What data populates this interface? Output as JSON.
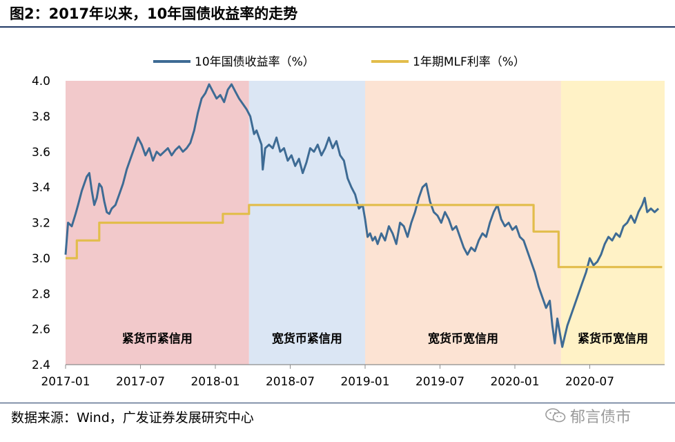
{
  "figure": {
    "title": "图2：2017年以来，10年国债收益率的走势",
    "source": "数据来源：Wind，广发证券发展研究中心",
    "watermark": "郁言债市"
  },
  "colors": {
    "yield_line": "#3e6b94",
    "mlf_line": "#e2bd4b",
    "region_tight_tight": "#f2c9cb",
    "region_loose_tight": "#dbe6f4",
    "region_loose_loose": "#fce3d3",
    "region_tight_loose": "#fff2c6"
  },
  "chart_data": {
    "type": "line",
    "title": "",
    "xlabel": "",
    "ylabel": "",
    "ylim": [
      2.4,
      4.0
    ],
    "yticks": [
      "4.0",
      "3.8",
      "3.6",
      "3.4",
      "3.2",
      "3.0",
      "2.8",
      "2.6",
      "2.4"
    ],
    "x_range_months": [
      0,
      48
    ],
    "xticks": [
      {
        "month": 0,
        "label": "2017-01"
      },
      {
        "month": 6,
        "label": "2017-07"
      },
      {
        "month": 12,
        "label": "2018-01"
      },
      {
        "month": 18,
        "label": "2018-07"
      },
      {
        "month": 24,
        "label": "2019-01"
      },
      {
        "month": 30,
        "label": "2019-07"
      },
      {
        "month": 36,
        "label": "2020-01"
      },
      {
        "month": 42,
        "label": "2020-07"
      }
    ],
    "legend": {
      "position": "top-center",
      "entries": [
        "10年国债收益率（%）",
        "1年期MLF利率（%）"
      ]
    },
    "regions": [
      {
        "label": "紧货币紧信用",
        "start": 0,
        "end": 14.7
      },
      {
        "label": "宽货币紧信用",
        "start": 14.7,
        "end": 24.0
      },
      {
        "label": "宽货币宽信用",
        "start": 24.0,
        "end": 39.7
      },
      {
        "label": "紧货币宽信用",
        "start": 39.7,
        "end": 48
      }
    ],
    "series": [
      {
        "name": "10年国债收益率（%）",
        "style": "line",
        "points": [
          [
            0.0,
            3.02
          ],
          [
            0.2,
            3.2
          ],
          [
            0.5,
            3.18
          ],
          [
            0.8,
            3.25
          ],
          [
            1.0,
            3.3
          ],
          [
            1.3,
            3.38
          ],
          [
            1.5,
            3.42
          ],
          [
            1.7,
            3.46
          ],
          [
            1.9,
            3.48
          ],
          [
            2.1,
            3.38
          ],
          [
            2.3,
            3.3
          ],
          [
            2.5,
            3.34
          ],
          [
            2.7,
            3.42
          ],
          [
            2.9,
            3.4
          ],
          [
            3.1,
            3.32
          ],
          [
            3.3,
            3.26
          ],
          [
            3.5,
            3.25
          ],
          [
            3.7,
            3.28
          ],
          [
            4.0,
            3.3
          ],
          [
            4.3,
            3.36
          ],
          [
            4.6,
            3.42
          ],
          [
            4.9,
            3.5
          ],
          [
            5.2,
            3.56
          ],
          [
            5.5,
            3.62
          ],
          [
            5.8,
            3.68
          ],
          [
            6.1,
            3.64
          ],
          [
            6.4,
            3.58
          ],
          [
            6.7,
            3.62
          ],
          [
            7.0,
            3.55
          ],
          [
            7.3,
            3.6
          ],
          [
            7.6,
            3.58
          ],
          [
            7.9,
            3.6
          ],
          [
            8.2,
            3.62
          ],
          [
            8.5,
            3.58
          ],
          [
            8.8,
            3.61
          ],
          [
            9.1,
            3.63
          ],
          [
            9.4,
            3.6
          ],
          [
            9.7,
            3.62
          ],
          [
            10.0,
            3.65
          ],
          [
            10.3,
            3.72
          ],
          [
            10.6,
            3.82
          ],
          [
            10.9,
            3.9
          ],
          [
            11.2,
            3.93
          ],
          [
            11.5,
            3.98
          ],
          [
            11.8,
            3.94
          ],
          [
            12.1,
            3.9
          ],
          [
            12.4,
            3.92
          ],
          [
            12.7,
            3.88
          ],
          [
            13.0,
            3.95
          ],
          [
            13.3,
            3.98
          ],
          [
            13.6,
            3.94
          ],
          [
            13.9,
            3.9
          ],
          [
            14.2,
            3.87
          ],
          [
            14.5,
            3.84
          ],
          [
            14.8,
            3.8
          ],
          [
            15.1,
            3.7
          ],
          [
            15.3,
            3.72
          ],
          [
            15.5,
            3.68
          ],
          [
            15.7,
            3.64
          ],
          [
            15.8,
            3.5
          ],
          [
            16.0,
            3.62
          ],
          [
            16.3,
            3.64
          ],
          [
            16.6,
            3.62
          ],
          [
            16.9,
            3.68
          ],
          [
            17.2,
            3.6
          ],
          [
            17.5,
            3.62
          ],
          [
            17.8,
            3.55
          ],
          [
            18.1,
            3.58
          ],
          [
            18.4,
            3.52
          ],
          [
            18.7,
            3.56
          ],
          [
            19.0,
            3.48
          ],
          [
            19.3,
            3.54
          ],
          [
            19.6,
            3.62
          ],
          [
            19.9,
            3.6
          ],
          [
            20.2,
            3.64
          ],
          [
            20.5,
            3.58
          ],
          [
            20.8,
            3.62
          ],
          [
            21.1,
            3.68
          ],
          [
            21.4,
            3.62
          ],
          [
            21.7,
            3.66
          ],
          [
            22.0,
            3.58
          ],
          [
            22.3,
            3.55
          ],
          [
            22.6,
            3.45
          ],
          [
            22.9,
            3.4
          ],
          [
            23.2,
            3.36
          ],
          [
            23.5,
            3.28
          ],
          [
            23.8,
            3.3
          ],
          [
            24.0,
            3.22
          ],
          [
            24.2,
            3.12
          ],
          [
            24.4,
            3.14
          ],
          [
            24.6,
            3.1
          ],
          [
            24.8,
            3.12
          ],
          [
            25.0,
            3.08
          ],
          [
            25.3,
            3.14
          ],
          [
            25.6,
            3.1
          ],
          [
            25.9,
            3.18
          ],
          [
            26.2,
            3.14
          ],
          [
            26.5,
            3.08
          ],
          [
            26.8,
            3.2
          ],
          [
            27.1,
            3.18
          ],
          [
            27.4,
            3.12
          ],
          [
            27.7,
            3.2
          ],
          [
            28.0,
            3.26
          ],
          [
            28.3,
            3.34
          ],
          [
            28.6,
            3.4
          ],
          [
            28.9,
            3.42
          ],
          [
            29.2,
            3.32
          ],
          [
            29.5,
            3.26
          ],
          [
            29.8,
            3.24
          ],
          [
            30.1,
            3.2
          ],
          [
            30.4,
            3.26
          ],
          [
            30.7,
            3.22
          ],
          [
            31.0,
            3.16
          ],
          [
            31.3,
            3.18
          ],
          [
            31.6,
            3.12
          ],
          [
            31.9,
            3.06
          ],
          [
            32.2,
            3.02
          ],
          [
            32.5,
            3.06
          ],
          [
            32.8,
            3.04
          ],
          [
            33.1,
            3.1
          ],
          [
            33.4,
            3.14
          ],
          [
            33.7,
            3.12
          ],
          [
            34.0,
            3.2
          ],
          [
            34.3,
            3.26
          ],
          [
            34.6,
            3.3
          ],
          [
            34.9,
            3.22
          ],
          [
            35.2,
            3.18
          ],
          [
            35.5,
            3.2
          ],
          [
            35.8,
            3.16
          ],
          [
            36.1,
            3.18
          ],
          [
            36.4,
            3.12
          ],
          [
            36.7,
            3.1
          ],
          [
            37.0,
            3.04
          ],
          [
            37.3,
            2.98
          ],
          [
            37.6,
            2.92
          ],
          [
            37.9,
            2.84
          ],
          [
            38.2,
            2.78
          ],
          [
            38.5,
            2.72
          ],
          [
            38.8,
            2.76
          ],
          [
            39.0,
            2.62
          ],
          [
            39.2,
            2.52
          ],
          [
            39.4,
            2.66
          ],
          [
            39.6,
            2.58
          ],
          [
            39.8,
            2.5
          ],
          [
            40.0,
            2.56
          ],
          [
            40.2,
            2.62
          ],
          [
            40.5,
            2.68
          ],
          [
            40.8,
            2.74
          ],
          [
            41.1,
            2.8
          ],
          [
            41.4,
            2.86
          ],
          [
            41.7,
            2.92
          ],
          [
            42.0,
            3.0
          ],
          [
            42.3,
            2.96
          ],
          [
            42.6,
            2.98
          ],
          [
            42.9,
            3.02
          ],
          [
            43.2,
            3.08
          ],
          [
            43.5,
            3.12
          ],
          [
            43.8,
            3.1
          ],
          [
            44.1,
            3.14
          ],
          [
            44.4,
            3.12
          ],
          [
            44.7,
            3.18
          ],
          [
            45.0,
            3.2
          ],
          [
            45.3,
            3.24
          ],
          [
            45.6,
            3.2
          ],
          [
            45.9,
            3.26
          ],
          [
            46.2,
            3.3
          ],
          [
            46.4,
            3.34
          ],
          [
            46.6,
            3.26
          ],
          [
            46.9,
            3.28
          ],
          [
            47.2,
            3.26
          ],
          [
            47.5,
            3.28
          ]
        ]
      },
      {
        "name": "1年期MLF利率（%）",
        "style": "step",
        "points": [
          [
            0.0,
            3.0
          ],
          [
            0.9,
            3.1
          ],
          [
            2.7,
            3.2
          ],
          [
            12.6,
            3.25
          ],
          [
            14.7,
            3.3
          ],
          [
            37.5,
            3.15
          ],
          [
            39.5,
            2.95
          ],
          [
            47.8,
            2.95
          ]
        ]
      }
    ]
  }
}
